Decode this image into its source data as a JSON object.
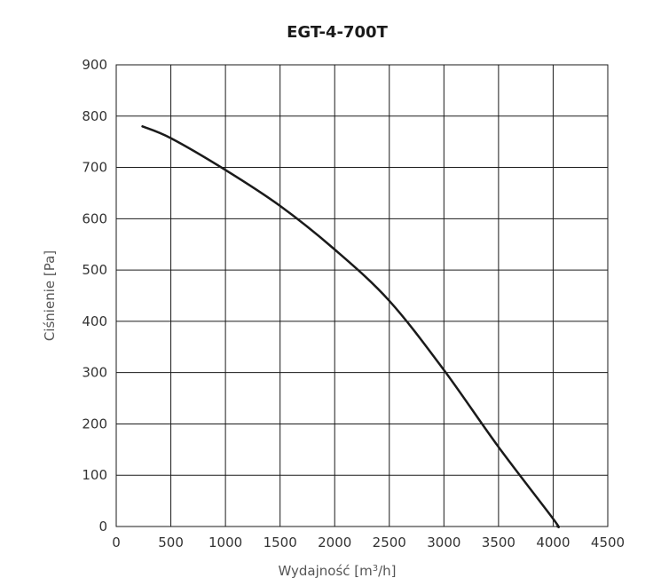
{
  "chart_data": {
    "type": "line",
    "title": "EGT-4-700T",
    "xlabel_base": "Wydajność [m",
    "xlabel_sup": "3",
    "xlabel_end": "/h]",
    "ylabel": "Ciśnienie [Pa]",
    "xlim": [
      0,
      4500
    ],
    "ylim": [
      0,
      900
    ],
    "xticks": [
      0,
      500,
      1000,
      1500,
      2000,
      2500,
      3000,
      3500,
      4000,
      4500
    ],
    "yticks": [
      0,
      100,
      200,
      300,
      400,
      500,
      600,
      700,
      800,
      900
    ],
    "grid": true,
    "series": [
      {
        "color": "#1a1a1a",
        "x": [
          240,
          500,
          1000,
          1500,
          2000,
          2500,
          3000,
          3500,
          4000,
          4040
        ],
        "y": [
          780,
          757,
          695,
          625,
          540,
          440,
          305,
          155,
          15,
          0
        ]
      }
    ]
  }
}
